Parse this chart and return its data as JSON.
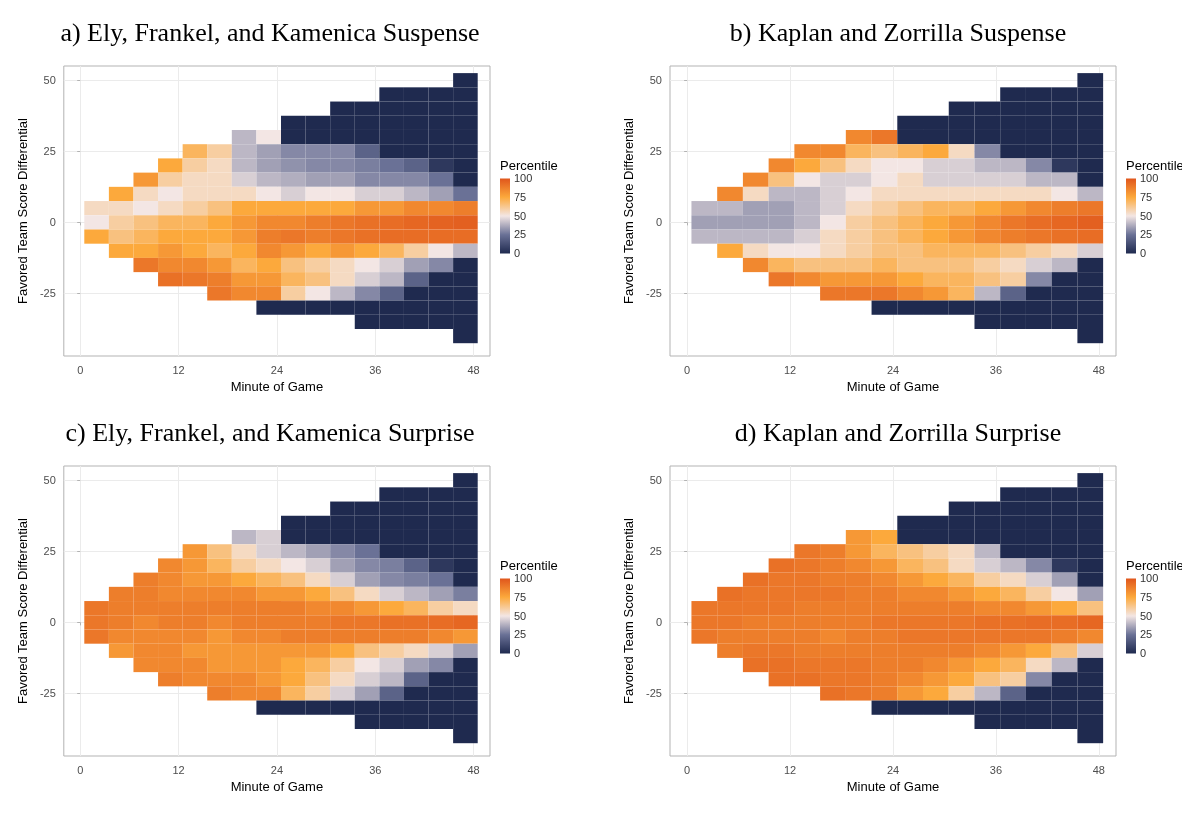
{
  "chart_data": [
    {
      "type": "heatmap",
      "title": "a) Ely, Frankel, and Kamenica Suspense",
      "xlabel": "Minute of Game",
      "ylabel": "Favored Team Score Differential",
      "clabel": "Percentile",
      "x": [
        2,
        5,
        8,
        11,
        14,
        17,
        20,
        23,
        26,
        29,
        32,
        35,
        38,
        41,
        44,
        47
      ],
      "y": [
        50,
        45,
        40,
        35,
        30,
        25,
        20,
        15,
        10,
        5,
        0,
        -5,
        -10,
        -15,
        -20,
        -25,
        -30,
        -35,
        -40
      ],
      "cells": [
        [
          null,
          null,
          null,
          null,
          null,
          null,
          null,
          null,
          null,
          null,
          null,
          null,
          null,
          null,
          null,
          0
        ],
        [
          null,
          null,
          null,
          null,
          null,
          null,
          null,
          null,
          null,
          null,
          null,
          null,
          0,
          0,
          0,
          0
        ],
        [
          null,
          null,
          null,
          null,
          null,
          null,
          null,
          null,
          null,
          null,
          0,
          0,
          0,
          0,
          0,
          0
        ],
        [
          null,
          null,
          null,
          null,
          null,
          null,
          null,
          null,
          0,
          0,
          0,
          0,
          0,
          0,
          0,
          0
        ],
        [
          null,
          null,
          null,
          null,
          null,
          null,
          40,
          50,
          0,
          0,
          0,
          0,
          0,
          0,
          0,
          0
        ],
        [
          null,
          null,
          null,
          null,
          70,
          60,
          40,
          35,
          30,
          30,
          30,
          20,
          0,
          0,
          0,
          0
        ],
        [
          null,
          null,
          null,
          75,
          60,
          55,
          40,
          35,
          32,
          30,
          30,
          28,
          25,
          20,
          5,
          0
        ],
        [
          null,
          null,
          80,
          60,
          55,
          55,
          45,
          40,
          38,
          35,
          35,
          30,
          30,
          30,
          25,
          0
        ],
        [
          null,
          75,
          55,
          50,
          55,
          55,
          55,
          50,
          45,
          50,
          50,
          45,
          45,
          40,
          35,
          25
        ],
        [
          55,
          55,
          50,
          55,
          60,
          65,
          75,
          75,
          75,
          75,
          75,
          80,
          80,
          85,
          85,
          88
        ],
        [
          50,
          60,
          65,
          70,
          70,
          75,
          80,
          85,
          85,
          88,
          90,
          92,
          93,
          95,
          96,
          97
        ],
        [
          75,
          65,
          70,
          75,
          75,
          75,
          80,
          88,
          90,
          88,
          90,
          92,
          93,
          93,
          93,
          93
        ],
        [
          null,
          75,
          75,
          80,
          75,
          70,
          75,
          85,
          80,
          75,
          80,
          75,
          70,
          60,
          50,
          40
        ],
        [
          null,
          null,
          90,
          85,
          85,
          80,
          70,
          75,
          65,
          60,
          55,
          50,
          45,
          35,
          30,
          0
        ],
        [
          null,
          null,
          null,
          92,
          90,
          88,
          80,
          80,
          70,
          65,
          55,
          45,
          40,
          20,
          0,
          0
        ],
        [
          null,
          null,
          null,
          null,
          null,
          90,
          85,
          85,
          60,
          50,
          40,
          30,
          20,
          0,
          0,
          0
        ],
        [
          null,
          null,
          null,
          null,
          null,
          null,
          null,
          0,
          0,
          0,
          0,
          0,
          0,
          0,
          0,
          0
        ],
        [
          null,
          null,
          null,
          null,
          null,
          null,
          null,
          null,
          null,
          null,
          null,
          0,
          0,
          0,
          0,
          0
        ],
        [
          null,
          null,
          null,
          null,
          null,
          null,
          null,
          null,
          null,
          null,
          null,
          null,
          null,
          null,
          null,
          0
        ]
      ],
      "xlim": [
        -2,
        50
      ],
      "ylim": [
        -47,
        55
      ],
      "xticks": [
        0,
        12,
        24,
        36,
        48
      ],
      "yticks": [
        -25,
        0,
        25,
        50
      ],
      "clim": [
        0,
        100
      ],
      "cticks": [
        0,
        25,
        50,
        75,
        100
      ],
      "grid": true
    },
    {
      "type": "heatmap",
      "title": "b) Kaplan and Zorrilla Suspense",
      "xlabel": "Minute of Game",
      "ylabel": "Favored Team Score Differential",
      "clabel": "Percentile",
      "x": [
        2,
        5,
        8,
        11,
        14,
        17,
        20,
        23,
        26,
        29,
        32,
        35,
        38,
        41,
        44,
        47
      ],
      "y": [
        50,
        45,
        40,
        35,
        30,
        25,
        20,
        15,
        10,
        5,
        0,
        -5,
        -10,
        -15,
        -20,
        -25,
        -30,
        -35,
        -40
      ],
      "cells": [
        [
          null,
          null,
          null,
          null,
          null,
          null,
          null,
          null,
          null,
          null,
          null,
          null,
          null,
          null,
          null,
          0
        ],
        [
          null,
          null,
          null,
          null,
          null,
          null,
          null,
          null,
          null,
          null,
          null,
          null,
          0,
          0,
          0,
          0
        ],
        [
          null,
          null,
          null,
          null,
          null,
          null,
          null,
          null,
          null,
          null,
          0,
          0,
          0,
          0,
          0,
          0
        ],
        [
          null,
          null,
          null,
          null,
          null,
          null,
          null,
          null,
          0,
          0,
          0,
          0,
          0,
          0,
          0,
          0
        ],
        [
          null,
          null,
          null,
          null,
          null,
          null,
          85,
          90,
          0,
          0,
          0,
          0,
          0,
          0,
          0,
          0
        ],
        [
          null,
          null,
          null,
          null,
          85,
          85,
          70,
          65,
          70,
          75,
          55,
          30,
          0,
          0,
          0,
          0
        ],
        [
          null,
          null,
          null,
          85,
          75,
          65,
          55,
          50,
          50,
          45,
          45,
          40,
          40,
          30,
          5,
          0
        ],
        [
          null,
          null,
          85,
          65,
          50,
          45,
          45,
          50,
          55,
          45,
          45,
          45,
          45,
          40,
          40,
          0
        ],
        [
          null,
          85,
          55,
          40,
          40,
          45,
          50,
          55,
          55,
          55,
          55,
          55,
          55,
          55,
          50,
          40
        ],
        [
          40,
          40,
          35,
          35,
          40,
          45,
          55,
          60,
          65,
          70,
          70,
          75,
          80,
          85,
          88,
          90
        ],
        [
          35,
          35,
          35,
          35,
          40,
          50,
          60,
          65,
          70,
          75,
          80,
          85,
          90,
          93,
          95,
          97
        ],
        [
          40,
          40,
          40,
          40,
          45,
          55,
          60,
          65,
          70,
          75,
          80,
          85,
          88,
          90,
          92,
          93
        ],
        [
          null,
          75,
          55,
          50,
          50,
          55,
          60,
          65,
          65,
          70,
          70,
          70,
          65,
          60,
          55,
          45
        ],
        [
          null,
          null,
          85,
          70,
          65,
          65,
          65,
          70,
          65,
          65,
          65,
          60,
          55,
          45,
          40,
          0
        ],
        [
          null,
          null,
          null,
          90,
          85,
          80,
          80,
          80,
          75,
          70,
          70,
          65,
          60,
          30,
          0,
          0
        ],
        [
          null,
          null,
          null,
          null,
          null,
          90,
          90,
          90,
          85,
          80,
          70,
          40,
          20,
          0,
          0,
          0
        ],
        [
          null,
          null,
          null,
          null,
          null,
          null,
          null,
          0,
          0,
          0,
          0,
          0,
          0,
          0,
          0,
          0
        ],
        [
          null,
          null,
          null,
          null,
          null,
          null,
          null,
          null,
          null,
          null,
          null,
          0,
          0,
          0,
          0,
          0
        ],
        [
          null,
          null,
          null,
          null,
          null,
          null,
          null,
          null,
          null,
          null,
          null,
          null,
          null,
          null,
          null,
          0
        ]
      ],
      "xlim": [
        -2,
        50
      ],
      "ylim": [
        -47,
        55
      ],
      "xticks": [
        0,
        12,
        24,
        36,
        48
      ],
      "yticks": [
        -25,
        0,
        25,
        50
      ],
      "clim": [
        0,
        100
      ],
      "cticks": [
        0,
        25,
        50,
        75,
        100
      ],
      "grid": true
    },
    {
      "type": "heatmap",
      "title": "c) Ely, Frankel, and Kamenica Surprise",
      "xlabel": "Minute of Game",
      "ylabel": "Favored Team Score Differential",
      "clabel": "Percentile",
      "x": [
        2,
        5,
        8,
        11,
        14,
        17,
        20,
        23,
        26,
        29,
        32,
        35,
        38,
        41,
        44,
        47
      ],
      "y": [
        50,
        45,
        40,
        35,
        30,
        25,
        20,
        15,
        10,
        5,
        0,
        -5,
        -10,
        -15,
        -20,
        -25,
        -30,
        -35,
        -40
      ],
      "cells": [
        [
          null,
          null,
          null,
          null,
          null,
          null,
          null,
          null,
          null,
          null,
          null,
          null,
          null,
          null,
          null,
          0
        ],
        [
          null,
          null,
          null,
          null,
          null,
          null,
          null,
          null,
          null,
          null,
          null,
          null,
          0,
          0,
          0,
          0
        ],
        [
          null,
          null,
          null,
          null,
          null,
          null,
          null,
          null,
          null,
          null,
          0,
          0,
          0,
          0,
          0,
          0
        ],
        [
          null,
          null,
          null,
          null,
          null,
          null,
          null,
          null,
          0,
          0,
          0,
          0,
          0,
          0,
          0,
          0
        ],
        [
          null,
          null,
          null,
          null,
          null,
          null,
          40,
          45,
          0,
          0,
          0,
          0,
          0,
          0,
          0,
          0
        ],
        [
          null,
          null,
          null,
          null,
          80,
          65,
          55,
          45,
          40,
          35,
          30,
          25,
          0,
          0,
          0,
          0
        ],
        [
          null,
          null,
          null,
          85,
          80,
          70,
          60,
          55,
          50,
          45,
          35,
          30,
          28,
          20,
          5,
          0
        ],
        [
          null,
          null,
          88,
          85,
          80,
          80,
          75,
          70,
          65,
          55,
          45,
          35,
          30,
          28,
          25,
          0
        ],
        [
          null,
          88,
          88,
          85,
          85,
          85,
          85,
          80,
          80,
          75,
          65,
          55,
          45,
          40,
          35,
          28
        ],
        [
          90,
          88,
          88,
          88,
          88,
          88,
          88,
          88,
          88,
          85,
          85,
          80,
          75,
          70,
          60,
          55
        ],
        [
          90,
          88,
          85,
          88,
          88,
          85,
          88,
          88,
          88,
          88,
          90,
          90,
          92,
          92,
          93,
          95
        ],
        [
          90,
          85,
          85,
          85,
          85,
          80,
          85,
          85,
          88,
          88,
          88,
          88,
          88,
          88,
          85,
          80
        ],
        [
          null,
          80,
          85,
          85,
          80,
          80,
          80,
          80,
          80,
          80,
          75,
          65,
          60,
          55,
          45,
          35
        ],
        [
          null,
          null,
          85,
          85,
          85,
          80,
          80,
          80,
          75,
          70,
          60,
          50,
          45,
          35,
          30,
          0
        ],
        [
          null,
          null,
          null,
          88,
          85,
          85,
          85,
          80,
          75,
          65,
          55,
          45,
          40,
          20,
          0,
          0
        ],
        [
          null,
          null,
          null,
          null,
          null,
          88,
          85,
          85,
          70,
          60,
          45,
          35,
          20,
          0,
          0,
          0
        ],
        [
          null,
          null,
          null,
          null,
          null,
          null,
          null,
          0,
          0,
          0,
          0,
          0,
          0,
          0,
          0,
          0
        ],
        [
          null,
          null,
          null,
          null,
          null,
          null,
          null,
          null,
          null,
          null,
          null,
          0,
          0,
          0,
          0,
          0
        ],
        [
          null,
          null,
          null,
          null,
          null,
          null,
          null,
          null,
          null,
          null,
          null,
          null,
          null,
          null,
          null,
          0
        ]
      ],
      "xlim": [
        -2,
        50
      ],
      "ylim": [
        -47,
        55
      ],
      "xticks": [
        0,
        12,
        24,
        36,
        48
      ],
      "yticks": [
        -25,
        0,
        25,
        50
      ],
      "clim": [
        0,
        100
      ],
      "cticks": [
        0,
        25,
        50,
        75,
        100
      ],
      "grid": true
    },
    {
      "type": "heatmap",
      "title": "d) Kaplan and Zorrilla Surprise",
      "xlabel": "Minute of Game",
      "ylabel": "Favored Team Score Differential",
      "clabel": "Percentile",
      "x": [
        2,
        5,
        8,
        11,
        14,
        17,
        20,
        23,
        26,
        29,
        32,
        35,
        38,
        41,
        44,
        47
      ],
      "y": [
        50,
        45,
        40,
        35,
        30,
        25,
        20,
        15,
        10,
        5,
        0,
        -5,
        -10,
        -15,
        -20,
        -25,
        -30,
        -35,
        -40
      ],
      "cells": [
        [
          null,
          null,
          null,
          null,
          null,
          null,
          null,
          null,
          null,
          null,
          null,
          null,
          null,
          null,
          null,
          0
        ],
        [
          null,
          null,
          null,
          null,
          null,
          null,
          null,
          null,
          null,
          null,
          null,
          null,
          0,
          0,
          0,
          0
        ],
        [
          null,
          null,
          null,
          null,
          null,
          null,
          null,
          null,
          null,
          null,
          0,
          0,
          0,
          0,
          0,
          0
        ],
        [
          null,
          null,
          null,
          null,
          null,
          null,
          null,
          null,
          0,
          0,
          0,
          0,
          0,
          0,
          0,
          0
        ],
        [
          null,
          null,
          null,
          null,
          null,
          null,
          80,
          75,
          0,
          0,
          0,
          0,
          0,
          0,
          0,
          0
        ],
        [
          null,
          null,
          null,
          null,
          90,
          88,
          80,
          70,
          65,
          60,
          55,
          40,
          0,
          0,
          0,
          0
        ],
        [
          null,
          null,
          null,
          92,
          90,
          88,
          85,
          80,
          70,
          65,
          55,
          45,
          40,
          30,
          5,
          0
        ],
        [
          null,
          null,
          92,
          90,
          90,
          88,
          88,
          85,
          80,
          75,
          70,
          60,
          55,
          45,
          35,
          0
        ],
        [
          null,
          92,
          90,
          90,
          90,
          90,
          88,
          88,
          85,
          85,
          80,
          75,
          70,
          60,
          50,
          35
        ],
        [
          90,
          90,
          90,
          90,
          88,
          88,
          88,
          88,
          88,
          88,
          88,
          85,
          85,
          80,
          75,
          65
        ],
        [
          90,
          90,
          88,
          88,
          88,
          88,
          88,
          90,
          90,
          90,
          90,
          92,
          92,
          93,
          93,
          95
        ],
        [
          90,
          88,
          88,
          88,
          88,
          85,
          88,
          88,
          90,
          90,
          90,
          90,
          90,
          90,
          88,
          85
        ],
        [
          null,
          88,
          90,
          90,
          88,
          88,
          88,
          88,
          88,
          88,
          88,
          85,
          80,
          75,
          65,
          45
        ],
        [
          null,
          null,
          92,
          92,
          90,
          90,
          90,
          88,
          88,
          85,
          80,
          75,
          70,
          55,
          40,
          0
        ],
        [
          null,
          null,
          null,
          92,
          92,
          90,
          90,
          88,
          85,
          80,
          75,
          65,
          60,
          30,
          0,
          0
        ],
        [
          null,
          null,
          null,
          null,
          null,
          92,
          90,
          88,
          80,
          75,
          60,
          40,
          20,
          0,
          0,
          0
        ],
        [
          null,
          null,
          null,
          null,
          null,
          null,
          null,
          0,
          0,
          0,
          0,
          0,
          0,
          0,
          0,
          0
        ],
        [
          null,
          null,
          null,
          null,
          null,
          null,
          null,
          null,
          null,
          null,
          null,
          0,
          0,
          0,
          0,
          0
        ],
        [
          null,
          null,
          null,
          null,
          null,
          null,
          null,
          null,
          null,
          null,
          null,
          null,
          null,
          null,
          null,
          0
        ]
      ],
      "xlim": [
        -2,
        50
      ],
      "ylim": [
        -47,
        55
      ],
      "xticks": [
        0,
        12,
        24,
        36,
        48
      ],
      "yticks": [
        -25,
        0,
        25,
        50
      ],
      "clim": [
        0,
        100
      ],
      "cticks": [
        0,
        25,
        50,
        75,
        100
      ],
      "grid": true
    }
  ]
}
